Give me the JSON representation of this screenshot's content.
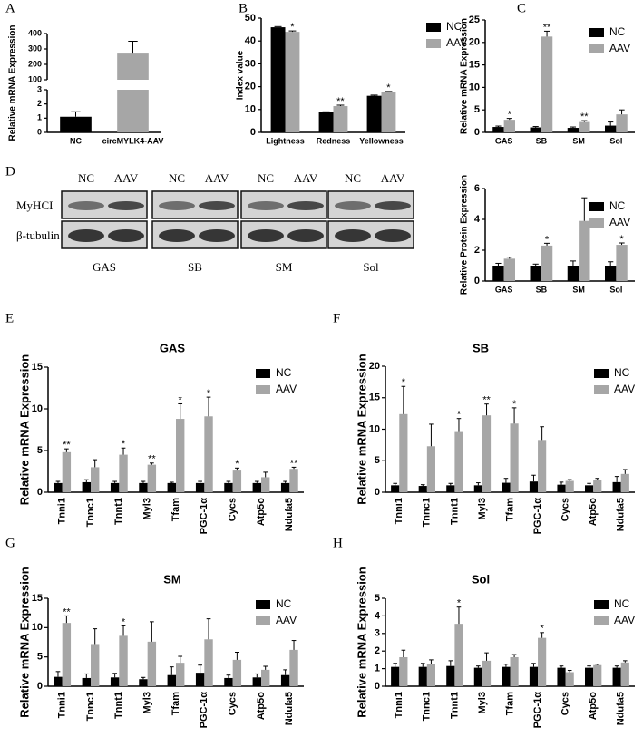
{
  "chart_data": [
    {
      "type": "bar",
      "panel": "A",
      "ylabel": "Relative mRNA Expression",
      "categories": [
        "NC",
        "circMYLK4-AAV"
      ],
      "values": [
        1.1,
        270
      ],
      "errors": [
        0.35,
        80
      ],
      "colors": [
        "#000000",
        "#a6a6a6"
      ],
      "ylim": [
        0,
        400
      ],
      "ybreak": [
        3,
        100
      ],
      "yticks": [
        0,
        1,
        2,
        3,
        100,
        200,
        300,
        400
      ],
      "grid": false,
      "xtick_rotation": 0
    },
    {
      "type": "bar",
      "panel": "B",
      "ylabel": "Index value",
      "categories": [
        "Lightness",
        "Redness",
        "Yellowness"
      ],
      "series": [
        {
          "name": "NC",
          "color": "#000000",
          "values": [
            46,
            8.8,
            16
          ],
          "errors": [
            0.3,
            0.2,
            0.3
          ],
          "sig": [
            null,
            null,
            null
          ]
        },
        {
          "name": "AAV",
          "color": "#a6a6a6",
          "values": [
            44,
            11.5,
            17.5
          ],
          "errors": [
            0.4,
            0.4,
            0.4
          ],
          "sig": [
            "*",
            "**",
            "*"
          ]
        }
      ],
      "ylim": [
        0,
        50
      ],
      "yticks": [
        0,
        10,
        20,
        30,
        40,
        50
      ],
      "grid": false,
      "xtick_rotation": 0,
      "legend": "outside-right"
    },
    {
      "type": "bar",
      "panel": "C",
      "ylabel": "Relative mRNA Expression",
      "categories": [
        "GAS",
        "SB",
        "SM",
        "Sol"
      ],
      "series": [
        {
          "name": "NC",
          "color": "#000000",
          "values": [
            1.2,
            1.1,
            1.0,
            1.5
          ],
          "errors": [
            0.2,
            0.2,
            0.2,
            0.8
          ],
          "sig": [
            null,
            null,
            null,
            null
          ]
        },
        {
          "name": "AAV",
          "color": "#a6a6a6",
          "values": [
            2.8,
            21.3,
            2.3,
            4.0
          ],
          "errors": [
            0.3,
            1.2,
            0.3,
            1.0
          ],
          "sig": [
            "*",
            "**",
            "**",
            null
          ]
        }
      ],
      "ylim": [
        0,
        25
      ],
      "yticks": [
        0,
        5,
        10,
        15,
        20,
        25
      ],
      "grid": false,
      "xtick_rotation": 0,
      "legend": "top-right"
    },
    {
      "type": "bar",
      "ylabel": "Relative Protein Expression",
      "categories": [
        "GAS",
        "SB",
        "SM",
        "Sol"
      ],
      "series": [
        {
          "name": "NC",
          "color": "#000000",
          "values": [
            1.0,
            1.0,
            1.0,
            1.0
          ],
          "errors": [
            0.15,
            0.1,
            0.3,
            0.25
          ],
          "sig": [
            null,
            null,
            null,
            null
          ]
        },
        {
          "name": "AAV",
          "color": "#a6a6a6",
          "values": [
            1.45,
            2.3,
            3.9,
            2.35
          ],
          "errors": [
            0.1,
            0.15,
            1.5,
            0.12
          ],
          "sig": [
            null,
            "*",
            null,
            "*"
          ]
        }
      ],
      "ylim": [
        0,
        6
      ],
      "yticks": [
        0,
        2,
        4,
        6
      ],
      "grid": false,
      "xtick_rotation": 0,
      "legend": "top-right"
    },
    {
      "type": "bar",
      "panel": "E",
      "title": "GAS",
      "ylabel": "Relative mRNA Expression",
      "categories": [
        "Tnni1",
        "Tnnc1",
        "Tnnt1",
        "Myl3",
        "Tfam",
        "PGC-1α",
        "Cycs",
        "Atp5o",
        "Ndufa5"
      ],
      "series": [
        {
          "name": "NC",
          "color": "#000000",
          "values": [
            1.1,
            1.2,
            1.1,
            1.1,
            1.1,
            1.1,
            1.1,
            1.1,
            1.1
          ],
          "errors": [
            0.2,
            0.3,
            0.2,
            0.2,
            0.1,
            0.2,
            0.2,
            0.2,
            0.2
          ],
          "sig": [
            null,
            null,
            null,
            null,
            null,
            null,
            null,
            null,
            null
          ]
        },
        {
          "name": "AAV",
          "color": "#a6a6a6",
          "values": [
            4.8,
            3.0,
            4.5,
            3.3,
            8.8,
            9.1,
            2.6,
            1.8,
            2.8
          ],
          "errors": [
            0.4,
            0.9,
            0.8,
            0.2,
            1.8,
            2.3,
            0.3,
            0.6,
            0.2
          ],
          "sig": [
            "**",
            null,
            "*",
            "**",
            "*",
            "*",
            "*",
            null,
            "**"
          ]
        }
      ],
      "ylim": [
        0,
        15
      ],
      "yticks": [
        0,
        5,
        10,
        15
      ],
      "grid": false,
      "xtick_rotation": 90,
      "legend": "top-right"
    },
    {
      "type": "bar",
      "panel": "F",
      "title": "SB",
      "ylabel": "Relative mRNA Expression",
      "categories": [
        "Tnni1",
        "Tnnc1",
        "Tnnt1",
        "Myl3",
        "Tfam",
        "PGC-1α",
        "Cycs",
        "Atp5o",
        "Ndufa5"
      ],
      "series": [
        {
          "name": "NC",
          "color": "#000000",
          "values": [
            1.1,
            1.0,
            1.1,
            1.1,
            1.5,
            1.7,
            1.2,
            1.1,
            1.6
          ],
          "errors": [
            0.3,
            0.2,
            0.3,
            0.4,
            0.7,
            1.0,
            0.4,
            0.3,
            0.9
          ],
          "sig": [
            null,
            null,
            null,
            null,
            null,
            null,
            null,
            null,
            null
          ]
        },
        {
          "name": "AAV",
          "color": "#a6a6a6",
          "values": [
            12.4,
            7.3,
            9.7,
            12.2,
            10.9,
            8.3,
            1.8,
            1.9,
            2.9
          ],
          "errors": [
            4.4,
            3.5,
            2.0,
            1.8,
            2.5,
            2.1,
            0.2,
            0.3,
            0.7
          ],
          "sig": [
            "*",
            null,
            "*",
            "**",
            "*",
            null,
            null,
            null,
            null
          ]
        }
      ],
      "ylim": [
        0,
        20
      ],
      "yticks": [
        0,
        5,
        10,
        15,
        20
      ],
      "grid": false,
      "xtick_rotation": 90,
      "legend": "top-right"
    },
    {
      "type": "bar",
      "panel": "G",
      "title": "SM",
      "ylabel": "Relative mRNA Expression",
      "categories": [
        "Tnni1",
        "Tnnc1",
        "Tnnt1",
        "Myl3",
        "Tfam",
        "PGC-1α",
        "Cycs",
        "Atp5o",
        "Ndufa5"
      ],
      "series": [
        {
          "name": "NC",
          "color": "#000000",
          "values": [
            1.6,
            1.4,
            1.5,
            1.2,
            1.9,
            2.3,
            1.4,
            1.5,
            1.9
          ],
          "errors": [
            0.9,
            0.7,
            0.7,
            0.3,
            1.4,
            1.3,
            0.5,
            0.6,
            0.9
          ],
          "sig": [
            null,
            null,
            null,
            null,
            null,
            null,
            null,
            null,
            null
          ]
        },
        {
          "name": "AAV",
          "color": "#a6a6a6",
          "values": [
            10.8,
            7.2,
            8.6,
            7.6,
            4.0,
            8.0,
            4.5,
            2.8,
            6.2
          ],
          "errors": [
            1.2,
            2.6,
            1.7,
            3.4,
            1.1,
            3.5,
            1.3,
            0.6,
            1.6
          ],
          "sig": [
            "**",
            null,
            "*",
            null,
            null,
            null,
            null,
            null,
            null
          ]
        }
      ],
      "ylim": [
        0,
        15
      ],
      "yticks": [
        0,
        5,
        10,
        15
      ],
      "grid": false,
      "xtick_rotation": 90,
      "legend": "top-right"
    },
    {
      "type": "bar",
      "panel": "H",
      "title": "Sol",
      "ylabel": "Relative mRNA Expression",
      "categories": [
        "Tnni1",
        "Tnnc1",
        "Tnnt1",
        "Myl3",
        "Tfam",
        "PGC-1α",
        "Cycs",
        "Atp5o",
        "Ndufa5"
      ],
      "series": [
        {
          "name": "NC",
          "color": "#000000",
          "values": [
            1.1,
            1.1,
            1.15,
            1.05,
            1.1,
            1.1,
            1.05,
            1.05,
            1.05
          ],
          "errors": [
            0.2,
            0.2,
            0.3,
            0.1,
            0.15,
            0.2,
            0.1,
            0.1,
            0.1
          ],
          "sig": [
            null,
            null,
            null,
            null,
            null,
            null,
            null,
            null,
            null
          ]
        },
        {
          "name": "AAV",
          "color": "#a6a6a6",
          "values": [
            1.65,
            1.25,
            3.55,
            1.45,
            1.65,
            2.75,
            0.8,
            1.2,
            1.35
          ],
          "errors": [
            0.4,
            0.25,
            0.95,
            0.45,
            0.15,
            0.3,
            0.1,
            0.05,
            0.1
          ],
          "sig": [
            null,
            null,
            "*",
            null,
            null,
            "*",
            null,
            null,
            null
          ]
        }
      ],
      "ylim": [
        0,
        5
      ],
      "yticks": [
        0,
        1,
        2,
        3,
        4,
        5
      ],
      "grid": false,
      "xtick_rotation": 90,
      "legend": "top-right"
    }
  ],
  "blot": {
    "panel": "D",
    "lanes": [
      "NC",
      "AAV"
    ],
    "rows": [
      "MyHCI",
      "β-tubulin"
    ],
    "groups": [
      "GAS",
      "SB",
      "SM",
      "Sol"
    ]
  }
}
